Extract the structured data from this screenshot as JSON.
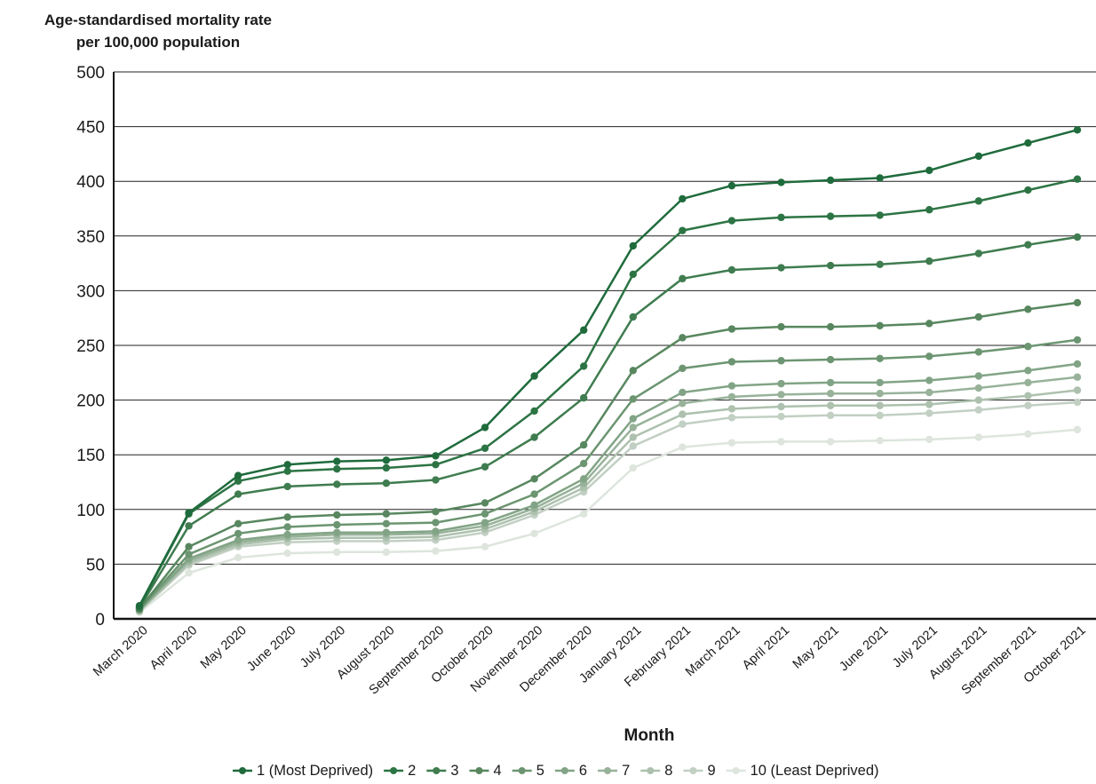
{
  "chart_data": {
    "type": "line",
    "title": "",
    "ylabel_lines": [
      "Age-standardised mortality rate",
      "per 100,000 population"
    ],
    "xlabel": "Month",
    "ylim": [
      0,
      500
    ],
    "yticks": [
      0,
      50,
      100,
      150,
      200,
      250,
      300,
      350,
      400,
      450,
      500
    ],
    "grid": "horizontal",
    "legend_position": "bottom",
    "categories": [
      "March 2020",
      "April 2020",
      "May 2020",
      "June 2020",
      "July 2020",
      "August 2020",
      "September 2020",
      "October 2020",
      "November 2020",
      "December 2020",
      "January 2021",
      "February 2021",
      "March 2021",
      "April 2021",
      "May 2021",
      "June 2021",
      "July 2021",
      "August 2021",
      "September 2021",
      "October 2021"
    ],
    "series": [
      {
        "name": "1 (Most Deprived)",
        "color": "#1f6b3c",
        "values": [
          12,
          97,
          131,
          141,
          144,
          145,
          149,
          175,
          222,
          264,
          341,
          384,
          396,
          399,
          401,
          403,
          410,
          423,
          435,
          447
        ]
      },
      {
        "name": "2",
        "color": "#2d7444",
        "values": [
          11,
          96,
          126,
          135,
          137,
          138,
          141,
          156,
          190,
          231,
          315,
          355,
          364,
          367,
          368,
          369,
          374,
          382,
          392,
          402
        ]
      },
      {
        "name": "3",
        "color": "#3f7c4f",
        "values": [
          10,
          85,
          114,
          121,
          123,
          124,
          127,
          139,
          166,
          202,
          276,
          311,
          319,
          321,
          323,
          324,
          327,
          334,
          342,
          349
        ]
      },
      {
        "name": "4",
        "color": "#58875f",
        "values": [
          9,
          66,
          87,
          93,
          95,
          96,
          98,
          106,
          128,
          159,
          227,
          257,
          265,
          267,
          267,
          268,
          270,
          276,
          283,
          289
        ]
      },
      {
        "name": "5",
        "color": "#6c9571",
        "values": [
          9,
          59,
          78,
          84,
          86,
          87,
          88,
          96,
          114,
          142,
          201,
          229,
          235,
          236,
          237,
          238,
          240,
          244,
          249,
          255
        ]
      },
      {
        "name": "6",
        "color": "#82a486",
        "values": [
          8,
          55,
          72,
          77,
          79,
          79,
          80,
          88,
          104,
          128,
          183,
          207,
          213,
          215,
          216,
          216,
          218,
          222,
          227,
          233
        ]
      },
      {
        "name": "7",
        "color": "#98b29a",
        "values": [
          8,
          53,
          70,
          75,
          77,
          77,
          78,
          85,
          101,
          124,
          175,
          197,
          203,
          205,
          206,
          206,
          207,
          211,
          216,
          221
        ]
      },
      {
        "name": "8",
        "color": "#adc1ae",
        "values": [
          7,
          51,
          68,
          73,
          74,
          74,
          75,
          82,
          98,
          120,
          166,
          187,
          192,
          194,
          195,
          195,
          196,
          200,
          204,
          209
        ]
      },
      {
        "name": "9",
        "color": "#c2cfc3",
        "values": [
          7,
          49,
          66,
          70,
          71,
          71,
          72,
          79,
          95,
          116,
          158,
          178,
          184,
          185,
          186,
          186,
          188,
          191,
          195,
          198
        ]
      },
      {
        "name": "10 (Least Deprived)",
        "color": "#dde5dd",
        "values": [
          6,
          42,
          56,
          60,
          61,
          61,
          62,
          66,
          78,
          96,
          138,
          157,
          161,
          162,
          162,
          163,
          164,
          166,
          169,
          173
        ]
      }
    ]
  }
}
